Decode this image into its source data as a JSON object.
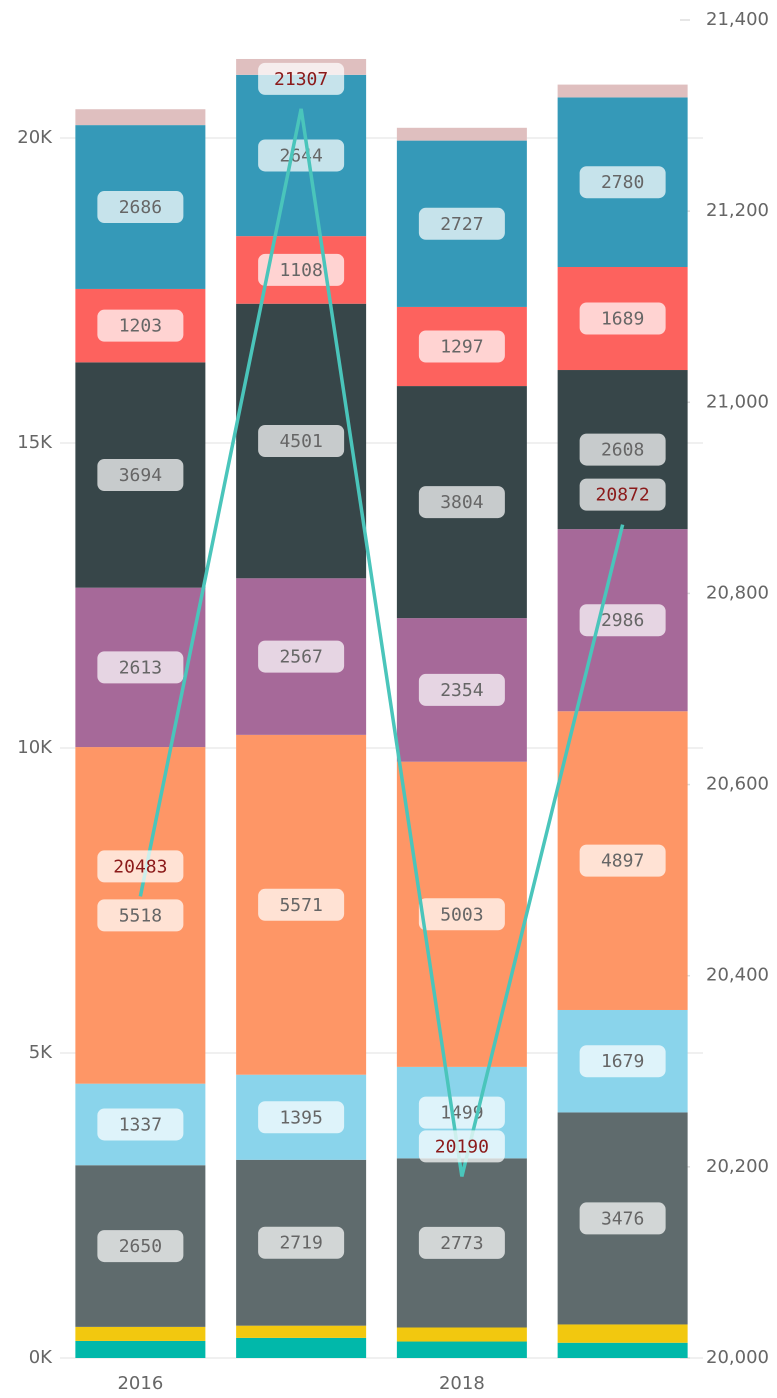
{
  "chart_data": {
    "type": "stacked_bar_line",
    "categories": [
      "2016",
      null,
      "2018",
      null
    ],
    "series": [
      {
        "color": "#01B8AA",
        "values": [
          280,
          330,
          270,
          250
        ],
        "show_labels": false
      },
      {
        "color": "#F2C80F",
        "values": [
          230,
          200,
          230,
          300
        ],
        "show_labels": false
      },
      {
        "color": "#5F6B6D",
        "values": [
          2650,
          2719,
          2773,
          3476
        ],
        "show_labels": true
      },
      {
        "color": "#8AD4EB",
        "values": [
          1337,
          1395,
          1499,
          1679
        ],
        "show_labels": true
      },
      {
        "color": "#FE9666",
        "values": [
          5518,
          5571,
          5003,
          4897
        ],
        "show_labels": true
      },
      {
        "color": "#A66999",
        "values": [
          2613,
          2567,
          2354,
          2986
        ],
        "show_labels": true
      },
      {
        "color": "#374649",
        "values": [
          3694,
          4501,
          3804,
          2608
        ],
        "show_labels": true
      },
      {
        "color": "#FD625E",
        "values": [
          1203,
          1108,
          1297,
          1689
        ],
        "show_labels": true
      },
      {
        "color": "#3599B8",
        "values": [
          2686,
          2644,
          2727,
          2780
        ],
        "show_labels": true
      },
      {
        "color": "#DFBFBF",
        "values": [
          260,
          260,
          210,
          210
        ],
        "show_labels": false
      },
      {
        "type": "line",
        "axis": "y2",
        "color": "#4AC5BB",
        "values": [
          20483,
          21307,
          20190,
          20872
        ],
        "show_labels": true
      }
    ],
    "ylim": [
      0,
      21934
    ],
    "yticks": [
      {
        "value": 0,
        "label": "0K"
      },
      {
        "value": 5000,
        "label": "5K"
      },
      {
        "value": 10000,
        "label": "10K"
      },
      {
        "value": 15000,
        "label": "15K"
      },
      {
        "value": 20000,
        "label": "20K"
      }
    ],
    "y2lim": [
      20000,
      21400
    ],
    "y2ticks": [
      {
        "value": 20000,
        "label": "20,000"
      },
      {
        "value": 20200,
        "label": "20,200"
      },
      {
        "value": 20400,
        "label": "20,400"
      },
      {
        "value": 20600,
        "label": "20,600"
      },
      {
        "value": 20800,
        "label": "20,800"
      },
      {
        "value": 21000,
        "label": "21,000"
      },
      {
        "value": 21200,
        "label": "21,200"
      },
      {
        "value": 21400,
        "label": "21,400"
      }
    ],
    "grid": true
  }
}
